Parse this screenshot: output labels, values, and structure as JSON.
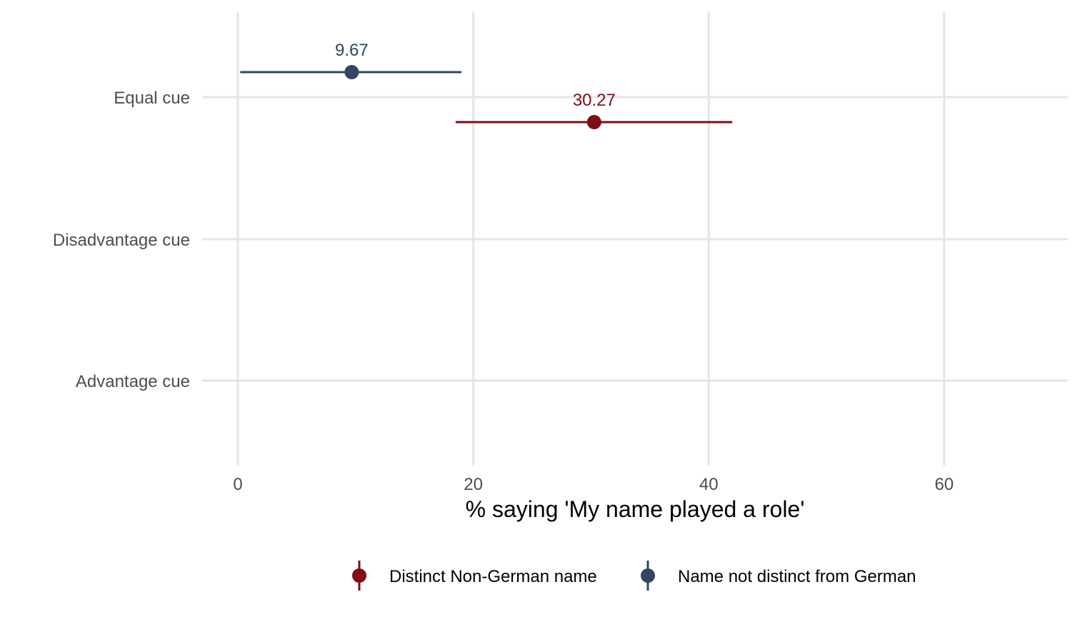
{
  "chart_data": {
    "type": "dot-whisker",
    "title": "",
    "xlabel": "% saying 'My name played a role'",
    "ylabel": "",
    "xlim": [
      -1,
      71
    ],
    "x_ticks": [
      0,
      20,
      40,
      60
    ],
    "x_tick_labels": [
      "0",
      "20",
      "40",
      "60"
    ],
    "categories": [
      "Equal cue",
      "Disadvantage cue",
      "Advantage cue"
    ],
    "grid": true,
    "legend_position": "bottom",
    "series": [
      {
        "name": "Distinct Non-German name",
        "color": "#7f0d18",
        "points": [
          {
            "category": "Equal cue",
            "value": 30.27,
            "label": "30.27",
            "ci_low": 18.5,
            "ci_high": 42.0
          }
        ]
      },
      {
        "name": "Name not distinct from German",
        "color": "#344561",
        "points": [
          {
            "category": "Equal cue",
            "value": 9.67,
            "label": "9.67",
            "ci_low": 0.2,
            "ci_high": 19.0
          }
        ]
      }
    ]
  }
}
